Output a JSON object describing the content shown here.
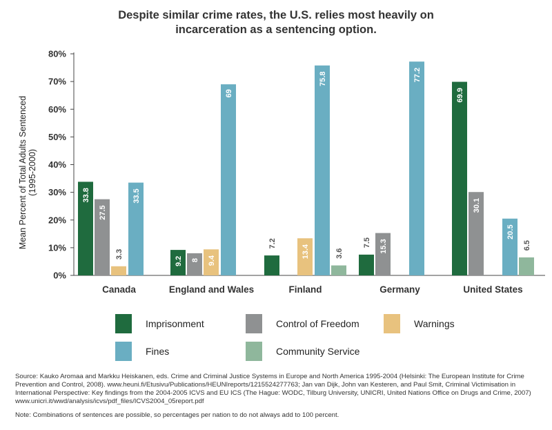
{
  "title_lines": [
    "Despite similar crime rates, the U.S. relies most heavily on",
    "incarceration as a sentencing option."
  ],
  "chart_data": {
    "type": "bar",
    "title": "Despite similar crime rates, the U.S. relies most heavily on incarceration as a sentencing option.",
    "ylabel_lines": [
      "Mean Percent of Total Adults Sentenced",
      "(1995-2000)"
    ],
    "xlabel": "",
    "ylim": [
      0,
      80
    ],
    "yticks": [
      {
        "value": 0,
        "label": "0%"
      },
      {
        "value": 10,
        "label": "10%"
      },
      {
        "value": 20,
        "label": "20%"
      },
      {
        "value": 30,
        "label": "30%"
      },
      {
        "value": 40,
        "label": "40%"
      },
      {
        "value": 50,
        "label": "50%"
      },
      {
        "value": 60,
        "label": "60%"
      },
      {
        "value": 70,
        "label": "70%"
      },
      {
        "value": 80,
        "label": "80%"
      }
    ],
    "categories": [
      "Canada",
      "England and Wales",
      "Finland",
      "Germany",
      "United States"
    ],
    "series": [
      {
        "name": "Imprisonment",
        "color": "#1f6b3e",
        "values": [
          33.8,
          9.2,
          7.2,
          7.5,
          69.9
        ],
        "labels": [
          "33.8",
          "9.2",
          "7.2",
          "7.5",
          "69.9"
        ]
      },
      {
        "name": "Control of Freedom",
        "color": "#8f9192",
        "values": [
          27.5,
          8,
          null,
          15.3,
          30.1
        ],
        "labels": [
          "27.5",
          "8",
          "",
          "15.3",
          "30.1"
        ]
      },
      {
        "name": "Warnings",
        "color": "#e8c27e",
        "values": [
          3.3,
          9.4,
          13.4,
          null,
          null
        ],
        "labels": [
          "3.3",
          "9.4",
          "13.4",
          "",
          ""
        ]
      },
      {
        "name": "Fines",
        "color": "#6aaec2",
        "values": [
          33.5,
          69,
          75.8,
          77.2,
          20.5
        ],
        "labels": [
          "33.5",
          "69",
          "75.8",
          "77.2",
          "20.5"
        ]
      },
      {
        "name": "Community Service",
        "color": "#8fb79c",
        "values": [
          null,
          null,
          3.6,
          null,
          6.5
        ],
        "labels": [
          "",
          "",
          "3.6",
          "",
          "6.5"
        ]
      }
    ],
    "legend": [
      {
        "name": "Imprisonment",
        "color": "#1f6b3e"
      },
      {
        "name": "Control of Freedom",
        "color": "#8f9192"
      },
      {
        "name": "Warnings",
        "color": "#e8c27e"
      },
      {
        "name": "Fines",
        "color": "#6aaec2"
      },
      {
        "name": "Community Service",
        "color": "#8fb79c"
      }
    ],
    "legend_placement": "bottom",
    "grid": false
  },
  "source": "Source: Kauko Aromaa and Markku Heiskanen, eds. Crime and Criminal Justice Systems in Europe and North America 1995-2004 (Helsinki: The European Institute for Crime Prevention and Control, 2008). www.heuni.fi/Etusivu/Publications/HEUNIreports/1215524277763; Jan van Dijk, John van Kesteren, and Paul Smit, Criminal Victimisation in International Perspective: Key findings from the 2004-2005 ICVS and EU ICS (The Hague: WODC, Tilburg University, UNICRI, United Nations Office on Drugs and Crime, 2007) www.unicri.it/wwd/analysis/icvs/pdf_files/ICVS2004_05report.pdf",
  "note": "Note: Combinations of sentences are possible, so percentages per nation to do not always add to 100 percent."
}
